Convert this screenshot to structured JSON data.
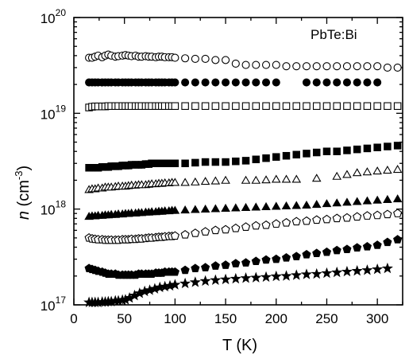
{
  "chart_data": {
    "type": "scatter",
    "title": "",
    "annotation": "PbTe:Bi",
    "xlabel": "T (K)",
    "ylabel": {
      "italic": "n",
      "unit_base": " (cm",
      "unit_sup": "-3",
      "unit_close": ")"
    },
    "xlim": [
      0,
      325
    ],
    "ylim": [
      1e+17,
      1e+20
    ],
    "yscale": "log",
    "grid": false,
    "legend": "none",
    "x_ticks": [
      0,
      50,
      100,
      150,
      200,
      250,
      300
    ],
    "x_tick_labels": [
      "0",
      "50",
      "100",
      "150",
      "200",
      "250",
      "300"
    ],
    "y_ticks": [
      {
        "value": 1e+17,
        "base": "10",
        "exp": "17"
      },
      {
        "value": 1e+18,
        "base": "10",
        "exp": "18"
      },
      {
        "value": 1e+19,
        "base": "10",
        "exp": "19"
      },
      {
        "value": 1e+20,
        "base": "10",
        "exp": "20"
      }
    ],
    "series": [
      {
        "marker": "circle-open",
        "x": [
          15,
          18,
          21,
          24,
          28,
          31,
          34,
          37,
          41,
          44,
          48,
          51,
          54,
          57,
          61,
          64,
          67,
          71,
          74,
          77,
          81,
          84,
          87,
          90,
          94,
          97,
          100,
          110,
          120,
          130,
          140,
          150,
          160,
          170,
          180,
          190,
          200,
          210,
          220,
          230,
          240,
          250,
          260,
          270,
          280,
          290,
          300,
          310,
          320
        ],
        "y": [
          3.8e+19,
          3.8e+19,
          3.9e+19,
          4e+19,
          3.85e+19,
          4e+19,
          4.1e+19,
          4e+19,
          3.9e+19,
          3.95e+19,
          4e+19,
          4.05e+19,
          4e+19,
          3.95e+19,
          4e+19,
          3.9e+19,
          3.9e+19,
          3.95e+19,
          3.9e+19,
          3.9e+19,
          3.85e+19,
          3.9e+19,
          3.9e+19,
          3.85e+19,
          3.85e+19,
          3.85e+19,
          3.8e+19,
          3.75e+19,
          3.7e+19,
          3.7e+19,
          3.6e+19,
          3.6e+19,
          3.3e+19,
          3.2e+19,
          3.2e+19,
          3.2e+19,
          3.2e+19,
          3.1e+19,
          3.1e+19,
          3.1e+19,
          3.1e+19,
          3.1e+19,
          3.1e+19,
          3.1e+19,
          3.1e+19,
          3.1e+19,
          3.1e+19,
          3e+19,
          3e+19
        ]
      },
      {
        "marker": "circle-filled",
        "x": [
          15,
          18,
          21,
          24,
          28,
          31,
          34,
          37,
          41,
          44,
          48,
          51,
          54,
          57,
          61,
          64,
          67,
          71,
          74,
          77,
          81,
          84,
          87,
          90,
          94,
          97,
          100,
          110,
          120,
          130,
          140,
          150,
          160,
          170,
          180,
          190,
          200,
          230,
          240,
          250,
          260,
          270,
          280,
          290,
          300
        ],
        "y": [
          2.1e+19,
          2.1e+19,
          2.1e+19,
          2.1e+19,
          2.1e+19,
          2.1e+19,
          2.1e+19,
          2.1e+19,
          2.1e+19,
          2.1e+19,
          2.1e+19,
          2.1e+19,
          2.1e+19,
          2.1e+19,
          2.1e+19,
          2.1e+19,
          2.1e+19,
          2.1e+19,
          2.1e+19,
          2.1e+19,
          2.1e+19,
          2.1e+19,
          2.1e+19,
          2.1e+19,
          2.1e+19,
          2.1e+19,
          2.1e+19,
          2.1e+19,
          2.1e+19,
          2.1e+19,
          2.1e+19,
          2.1e+19,
          2.1e+19,
          2.1e+19,
          2.1e+19,
          2.1e+19,
          2.1e+19,
          2.1e+19,
          2.1e+19,
          2.1e+19,
          2.1e+19,
          2.1e+19,
          2.1e+19,
          2.1e+19,
          2.1e+19
        ]
      },
      {
        "marker": "square-open",
        "x": [
          15,
          18,
          21,
          24,
          28,
          31,
          34,
          37,
          41,
          44,
          48,
          51,
          54,
          57,
          61,
          64,
          67,
          71,
          74,
          77,
          81,
          84,
          87,
          90,
          94,
          97,
          100,
          110,
          120,
          130,
          140,
          150,
          160,
          170,
          180,
          190,
          200,
          210,
          220,
          230,
          240,
          250,
          260,
          270,
          280,
          290,
          300,
          310,
          320
        ],
        "y": [
          1.15e+19,
          1.17e+19,
          1.18e+19,
          1.18e+19,
          1.18e+19,
          1.18e+19,
          1.19e+19,
          1.19e+19,
          1.19e+19,
          1.19e+19,
          1.19e+19,
          1.19e+19,
          1.19e+19,
          1.19e+19,
          1.19e+19,
          1.19e+19,
          1.19e+19,
          1.19e+19,
          1.19e+19,
          1.19e+19,
          1.19e+19,
          1.19e+19,
          1.19e+19,
          1.19e+19,
          1.19e+19,
          1.19e+19,
          1.19e+19,
          1.19e+19,
          1.19e+19,
          1.19e+19,
          1.19e+19,
          1.19e+19,
          1.19e+19,
          1.19e+19,
          1.19e+19,
          1.19e+19,
          1.19e+19,
          1.19e+19,
          1.19e+19,
          1.19e+19,
          1.19e+19,
          1.19e+19,
          1.19e+19,
          1.19e+19,
          1.19e+19,
          1.19e+19,
          1.19e+19,
          1.19e+19,
          1.19e+19
        ]
      },
      {
        "marker": "square-filled",
        "x": [
          15,
          18,
          21,
          24,
          28,
          31,
          34,
          37,
          41,
          44,
          48,
          51,
          54,
          57,
          61,
          64,
          67,
          71,
          74,
          77,
          81,
          84,
          87,
          90,
          94,
          97,
          100,
          110,
          120,
          130,
          140,
          150,
          160,
          170,
          180,
          190,
          200,
          210,
          220,
          230,
          240,
          250,
          260,
          270,
          280,
          290,
          300,
          310,
          320
        ],
        "y": [
          2.7e+18,
          2.7e+18,
          2.7e+18,
          2.7e+18,
          2.75e+18,
          2.75e+18,
          2.75e+18,
          2.8e+18,
          2.8e+18,
          2.8e+18,
          2.85e+18,
          2.85e+18,
          2.85e+18,
          2.9e+18,
          2.9e+18,
          2.9e+18,
          2.9e+18,
          2.95e+18,
          2.95e+18,
          3e+18,
          3e+18,
          3e+18,
          3e+18,
          3e+18,
          3e+18,
          3e+18,
          3e+18,
          3e+18,
          3.05e+18,
          3.1e+18,
          3.1e+18,
          3.1e+18,
          3.15e+18,
          3.2e+18,
          3.3e+18,
          3.4e+18,
          3.5e+18,
          3.6e+18,
          3.7e+18,
          3.8e+18,
          3.9e+18,
          4e+18,
          4e+18,
          4.1e+18,
          4.2e+18,
          4.3e+18,
          4.4e+18,
          4.5e+18,
          4.6e+18
        ]
      },
      {
        "marker": "triangle-open",
        "x": [
          15,
          18,
          21,
          24,
          28,
          31,
          34,
          37,
          41,
          44,
          48,
          51,
          54,
          57,
          61,
          64,
          67,
          71,
          74,
          77,
          81,
          84,
          87,
          90,
          94,
          97,
          100,
          110,
          120,
          130,
          140,
          150,
          170,
          180,
          190,
          200,
          210,
          220,
          240,
          260,
          270,
          280,
          290,
          300,
          310,
          320
        ],
        "y": [
          1.6e+18,
          1.63e+18,
          1.63e+18,
          1.66e+18,
          1.66e+18,
          1.7e+18,
          1.7e+18,
          1.7e+18,
          1.72e+18,
          1.74e+18,
          1.74e+18,
          1.74e+18,
          1.76e+18,
          1.78e+18,
          1.78e+18,
          1.8e+18,
          1.8e+18,
          1.8e+18,
          1.82e+18,
          1.84e+18,
          1.84e+18,
          1.86e+18,
          1.86e+18,
          1.88e+18,
          1.88e+18,
          1.9e+18,
          1.9e+18,
          1.9e+18,
          1.92e+18,
          1.95e+18,
          1.97e+18,
          2e+18,
          2e+18,
          2e+18,
          2.02e+18,
          2.05e+18,
          2.05e+18,
          2.05e+18,
          2.1e+18,
          2.2e+18,
          2.3e+18,
          2.4e+18,
          2.45e+18,
          2.5e+18,
          2.55e+18,
          2.6e+18
        ]
      },
      {
        "marker": "triangle-filled",
        "x": [
          15,
          18,
          21,
          24,
          28,
          31,
          34,
          37,
          41,
          44,
          48,
          51,
          54,
          57,
          61,
          64,
          67,
          71,
          74,
          77,
          81,
          84,
          87,
          90,
          94,
          97,
          100,
          110,
          120,
          130,
          140,
          150,
          160,
          170,
          180,
          190,
          200,
          210,
          220,
          230,
          240,
          250,
          260,
          270,
          280,
          290,
          300,
          310,
          320
        ],
        "y": [
          8.4e+17,
          8.5e+17,
          8.5e+17,
          8.6e+17,
          8.6e+17,
          8.7e+17,
          8.7e+17,
          8.8e+17,
          8.8e+17,
          8.9e+17,
          8.9e+17,
          9e+17,
          9e+17,
          9.1e+17,
          9.1e+17,
          9.2e+17,
          9.2e+17,
          9.3e+17,
          9.3e+17,
          9.4e+17,
          9.4e+17,
          9.5e+17,
          9.5e+17,
          9.6e+17,
          9.6e+17,
          9.7e+17,
          9.7e+17,
          9.8e+17,
          9.9e+17,
          1e+18,
          1.01e+18,
          1.02e+18,
          1.03e+18,
          1.04e+18,
          1.05e+18,
          1.06e+18,
          1.07e+18,
          1.08e+18,
          1.09e+18,
          1.1e+18,
          1.12e+18,
          1.14e+18,
          1.16e+18,
          1.18e+18,
          1.2e+18,
          1.22e+18,
          1.24e+18,
          1.26e+18,
          1.28e+18
        ]
      },
      {
        "marker": "pentagon-open",
        "x": [
          15,
          18,
          21,
          24,
          28,
          31,
          34,
          37,
          41,
          44,
          48,
          51,
          54,
          57,
          61,
          64,
          67,
          71,
          74,
          77,
          81,
          84,
          87,
          90,
          94,
          97,
          100,
          110,
          120,
          130,
          140,
          150,
          160,
          170,
          180,
          190,
          200,
          210,
          220,
          230,
          240,
          250,
          260,
          270,
          280,
          290,
          300,
          310,
          320
        ],
        "y": [
          5e+17,
          4.9e+17,
          4.85e+17,
          4.8e+17,
          4.8e+17,
          4.75e+17,
          4.75e+17,
          4.75e+17,
          4.75e+17,
          4.75e+17,
          4.8e+17,
          4.8e+17,
          4.8e+17,
          4.85e+17,
          4.85e+17,
          4.9e+17,
          4.9e+17,
          4.95e+17,
          5e+17,
          5e+17,
          5.05e+17,
          5.1e+17,
          5.1e+17,
          5.15e+17,
          5.2e+17,
          5.2e+17,
          5.25e+17,
          5.4e+17,
          5.6e+17,
          5.8e+17,
          6e+17,
          6.1e+17,
          6.3e+17,
          6.5e+17,
          6.7e+17,
          6.8e+17,
          7e+17,
          7.2e+17,
          7.4e+17,
          7.5e+17,
          7.7e+17,
          7.8e+17,
          8e+17,
          8.1e+17,
          8.3e+17,
          8.5e+17,
          8.6e+17,
          8.8e+17,
          9e+17
        ]
      },
      {
        "marker": "pentagon-filled",
        "x": [
          15,
          18,
          21,
          24,
          28,
          31,
          34,
          37,
          41,
          44,
          48,
          51,
          54,
          57,
          61,
          64,
          67,
          71,
          74,
          77,
          81,
          84,
          87,
          90,
          94,
          97,
          100,
          110,
          120,
          130,
          140,
          150,
          160,
          170,
          180,
          190,
          200,
          210,
          220,
          230,
          240,
          250,
          260,
          270,
          280,
          290,
          300,
          310,
          320
        ],
        "y": [
          2.4e+17,
          2.35e+17,
          2.3e+17,
          2.25e+17,
          2.2e+17,
          2.15e+17,
          2.1e+17,
          2.1e+17,
          2.1e+17,
          2.05e+17,
          2.05e+17,
          2.05e+17,
          2.05e+17,
          2.05e+17,
          2.05e+17,
          2.1e+17,
          2.1e+17,
          2.1e+17,
          2.1e+17,
          2.1e+17,
          2.15e+17,
          2.15e+17,
          2.15e+17,
          2.2e+17,
          2.2e+17,
          2.2e+17,
          2.2e+17,
          2.3e+17,
          2.4e+17,
          2.45e+17,
          2.55e+17,
          2.6e+17,
          2.7e+17,
          2.75e+17,
          2.85e+17,
          2.95e+17,
          3e+17,
          3.1e+17,
          3.2e+17,
          3.35e+17,
          3.45e+17,
          3.55e+17,
          3.7e+17,
          3.8e+17,
          3.95e+17,
          4.05e+17,
          4.2e+17,
          4.5e+17,
          4.8e+17
        ]
      },
      {
        "marker": "star-filled",
        "x": [
          15,
          18,
          21,
          24,
          28,
          31,
          34,
          37,
          41,
          44,
          48,
          51,
          55,
          60,
          65,
          70,
          75,
          80,
          85,
          90,
          95,
          100,
          110,
          120,
          130,
          140,
          150,
          160,
          170,
          180,
          190,
          200,
          210,
          220,
          230,
          240,
          250,
          260,
          270,
          280,
          290,
          300,
          310
        ],
        "y": [
          1.06e+17,
          1.06e+17,
          1.06e+17,
          1.06e+17,
          1.07e+17,
          1.07e+17,
          1.08e+17,
          1.08e+17,
          1.1e+17,
          1.1e+17,
          1.12e+17,
          1.13e+17,
          1.18e+17,
          1.25e+17,
          1.32e+17,
          1.38e+17,
          1.42e+17,
          1.47e+17,
          1.52e+17,
          1.55e+17,
          1.58e+17,
          1.62e+17,
          1.67e+17,
          1.72e+17,
          1.77e+17,
          1.81e+17,
          1.84e+17,
          1.87e+17,
          1.9e+17,
          1.92e+17,
          1.95e+17,
          1.98e+17,
          2e+17,
          2.04e+17,
          2.08e+17,
          2.1e+17,
          2.14e+17,
          2.18e+17,
          2.22e+17,
          2.26e+17,
          2.3e+17,
          2.35e+17,
          2.4e+17
        ]
      }
    ]
  }
}
